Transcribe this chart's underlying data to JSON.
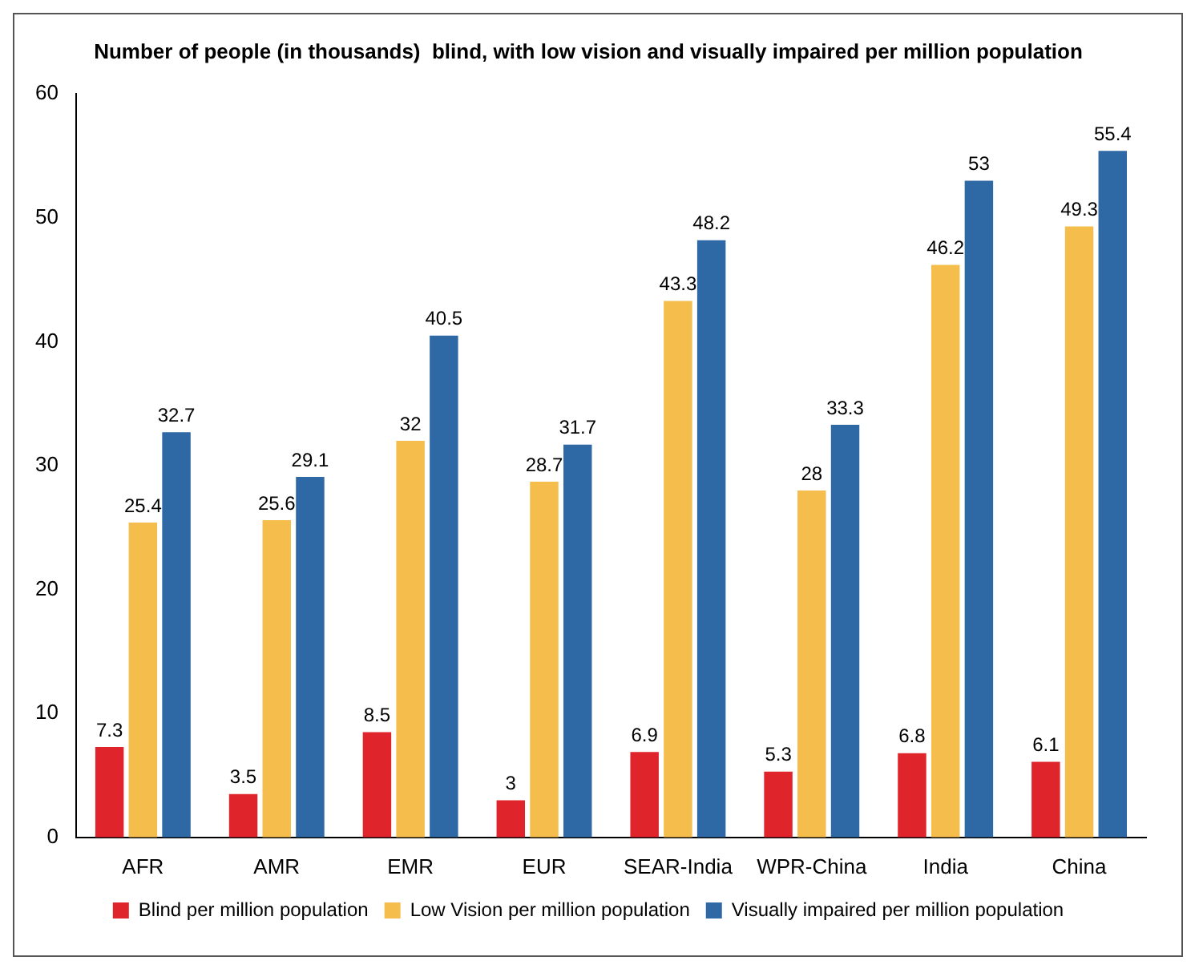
{
  "chart_data": {
    "type": "bar",
    "title": "Number of people (in thousands)  blind, with low vision and visually impaired per million population",
    "categories": [
      "AFR",
      "AMR",
      "EMR",
      "EUR",
      "SEAR-India",
      "WPR-China",
      "India",
      "China"
    ],
    "series": [
      {
        "name": "Blind per million population",
        "color": "#e0242c",
        "values": [
          7.3,
          3.5,
          8.5,
          3,
          6.9,
          5.3,
          6.8,
          6.1
        ]
      },
      {
        "name": "Low Vision per million population",
        "color": "#f4bd4c",
        "values": [
          25.4,
          25.6,
          32,
          28.7,
          43.3,
          28,
          46.2,
          49.3
        ]
      },
      {
        "name": "Visually impaired per million population",
        "color": "#2e69a6",
        "values": [
          32.7,
          29.1,
          40.5,
          31.7,
          48.2,
          33.3,
          53,
          55.4
        ]
      }
    ],
    "ylim": [
      0,
      60
    ],
    "yticks": [
      0,
      10,
      20,
      30,
      40,
      50,
      60
    ],
    "grid": false,
    "legend": "bottom",
    "data_labels": true
  }
}
